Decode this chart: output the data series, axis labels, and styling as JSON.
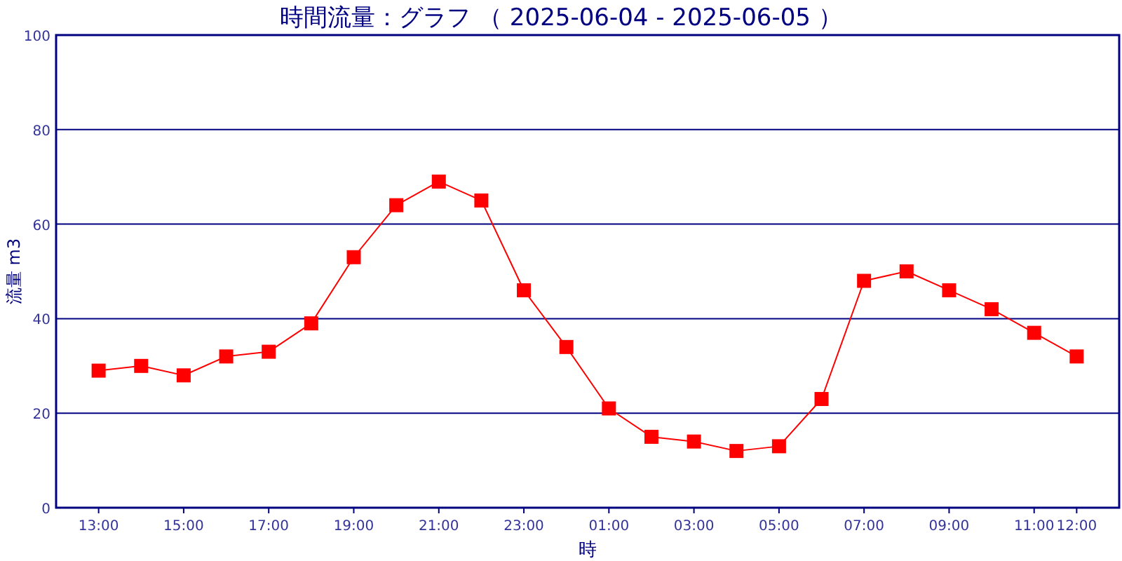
{
  "chart_data": {
    "type": "line",
    "title": "時間流量：グラフ （ 2025-06-04 - 2025-06-05 ）",
    "xlabel": "時",
    "ylabel": "流量 m3",
    "categories": [
      "13:00",
      null,
      "15:00",
      null,
      "17:00",
      null,
      "19:00",
      null,
      "21:00",
      null,
      "23:00",
      null,
      "01:00",
      null,
      "03:00",
      null,
      "05:00",
      null,
      "07:00",
      null,
      "09:00",
      null,
      "11:00",
      "12:00"
    ],
    "series": [
      {
        "color": "#ff0000",
        "values": [
          29,
          30,
          28,
          32,
          33,
          39,
          53,
          64,
          69,
          65,
          46,
          34,
          21,
          15,
          14,
          12,
          13,
          23,
          48,
          50,
          46,
          42,
          37,
          32
        ]
      }
    ],
    "ylim": [
      0,
      100
    ],
    "yticks": [
      0,
      20,
      40,
      60,
      80,
      100
    ],
    "grid": "y",
    "marker": "square",
    "line_style": "solid"
  }
}
